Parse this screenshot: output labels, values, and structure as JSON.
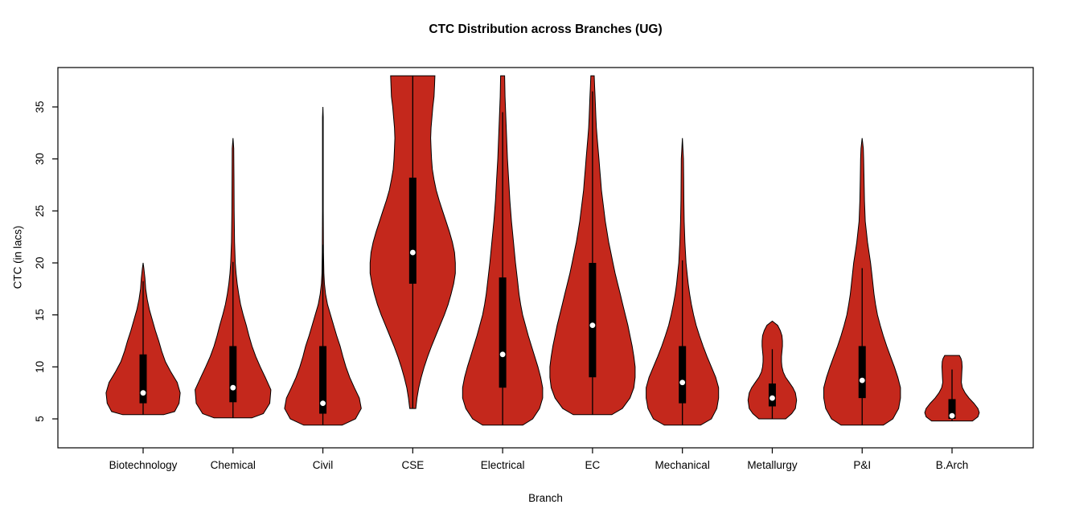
{
  "chart_data": {
    "type": "violin",
    "title": "CTC Distribution across Branches (UG)",
    "xlabel": "Branch",
    "ylabel": "CTC (in lacs)",
    "yticks": [
      5,
      10,
      15,
      20,
      25,
      30,
      35
    ],
    "ylim": [
      2.2,
      38.8
    ],
    "grid": false,
    "categories": [
      "Biotechnology",
      "Chemical",
      "Civil",
      "CSE",
      "Electrical",
      "EC",
      "Mechanical",
      "Metallurgy",
      "P&I",
      "B.Arch"
    ],
    "colors": {
      "violin_fill": "#C4281C",
      "outline": "#000000",
      "box": "#000000",
      "median_dot": "#FFFFFF",
      "background": "#FFFFFF"
    },
    "series": [
      {
        "name": "Biotechnology",
        "min": 5.4,
        "q1": 6.5,
        "median": 7.5,
        "q3": 11.2,
        "max": 20,
        "width": 0.87,
        "shape": [
          [
            5.4,
            0.55
          ],
          [
            5.7,
            0.85
          ],
          [
            6.5,
            0.97
          ],
          [
            7.5,
            1.0
          ],
          [
            8.5,
            0.92
          ],
          [
            9.5,
            0.75
          ],
          [
            10.5,
            0.6
          ],
          [
            11.5,
            0.5
          ],
          [
            12.5,
            0.42
          ],
          [
            13.5,
            0.33
          ],
          [
            14.5,
            0.25
          ],
          [
            15.5,
            0.17
          ],
          [
            16.5,
            0.11
          ],
          [
            17.5,
            0.07
          ],
          [
            18.5,
            0.05
          ],
          [
            19.5,
            0.02
          ],
          [
            20,
            0.0
          ]
        ]
      },
      {
        "name": "Chemical",
        "min": 5.1,
        "q1": 6.6,
        "median": 8,
        "q3": 12,
        "max": 32,
        "width": 0.89,
        "shape": [
          [
            5.1,
            0.5
          ],
          [
            5.5,
            0.8
          ],
          [
            6.5,
            0.97
          ],
          [
            7.8,
            1.0
          ],
          [
            9,
            0.85
          ],
          [
            10,
            0.72
          ],
          [
            11,
            0.6
          ],
          [
            12,
            0.5
          ],
          [
            13,
            0.42
          ],
          [
            14,
            0.35
          ],
          [
            15,
            0.27
          ],
          [
            16,
            0.2
          ],
          [
            17,
            0.15
          ],
          [
            18,
            0.11
          ],
          [
            19,
            0.08
          ],
          [
            20,
            0.06
          ],
          [
            22,
            0.04
          ],
          [
            25,
            0.03
          ],
          [
            28,
            0.025
          ],
          [
            31,
            0.02
          ],
          [
            32,
            0.0
          ]
        ]
      },
      {
        "name": "Civil",
        "min": 4.4,
        "q1": 5.5,
        "median": 6.5,
        "q3": 12,
        "max": 35,
        "width": 0.9,
        "shape": [
          [
            4.4,
            0.5
          ],
          [
            5,
            0.85
          ],
          [
            6,
            1.0
          ],
          [
            7,
            0.95
          ],
          [
            8,
            0.82
          ],
          [
            9,
            0.7
          ],
          [
            10,
            0.6
          ],
          [
            11,
            0.52
          ],
          [
            12,
            0.45
          ],
          [
            13,
            0.36
          ],
          [
            14,
            0.28
          ],
          [
            15,
            0.2
          ],
          [
            16,
            0.12
          ],
          [
            17,
            0.07
          ],
          [
            18,
            0.04
          ],
          [
            19,
            0.025
          ],
          [
            21,
            0.015
          ],
          [
            25,
            0.01
          ],
          [
            30,
            0.01
          ],
          [
            34,
            0.01
          ],
          [
            35,
            0.0
          ]
        ]
      },
      {
        "name": "CSE",
        "min": 6,
        "q1": 18,
        "median": 21,
        "q3": 28.2,
        "max": 38,
        "width": 1.0,
        "shape": [
          [
            6,
            0.07
          ],
          [
            7,
            0.1
          ],
          [
            8,
            0.14
          ],
          [
            9,
            0.2
          ],
          [
            10,
            0.27
          ],
          [
            11,
            0.35
          ],
          [
            12,
            0.44
          ],
          [
            13,
            0.54
          ],
          [
            14,
            0.64
          ],
          [
            15,
            0.74
          ],
          [
            16,
            0.83
          ],
          [
            17,
            0.9
          ],
          [
            18,
            0.96
          ],
          [
            19,
            1.0
          ],
          [
            20,
            1.0
          ],
          [
            21,
            0.98
          ],
          [
            22,
            0.93
          ],
          [
            23,
            0.86
          ],
          [
            24,
            0.78
          ],
          [
            25,
            0.7
          ],
          [
            26,
            0.62
          ],
          [
            27,
            0.55
          ],
          [
            28,
            0.5
          ],
          [
            29,
            0.46
          ],
          [
            30,
            0.44
          ],
          [
            31,
            0.43
          ],
          [
            32,
            0.42
          ],
          [
            33,
            0.43
          ],
          [
            34,
            0.45
          ],
          [
            35,
            0.47
          ],
          [
            36,
            0.5
          ],
          [
            37,
            0.51
          ],
          [
            38,
            0.52
          ]
        ]
      },
      {
        "name": "Electrical",
        "min": 4.4,
        "q1": 8,
        "median": 11.2,
        "q3": 18.6,
        "max": 38,
        "width": 0.94,
        "shape": [
          [
            4.4,
            0.5
          ],
          [
            5,
            0.75
          ],
          [
            6,
            0.92
          ],
          [
            7,
            1.0
          ],
          [
            8,
            1.0
          ],
          [
            9,
            0.95
          ],
          [
            10,
            0.88
          ],
          [
            11,
            0.8
          ],
          [
            12,
            0.72
          ],
          [
            13,
            0.64
          ],
          [
            14,
            0.57
          ],
          [
            15,
            0.5
          ],
          [
            16,
            0.45
          ],
          [
            17,
            0.41
          ],
          [
            18,
            0.38
          ],
          [
            19,
            0.35
          ],
          [
            20,
            0.32
          ],
          [
            22,
            0.27
          ],
          [
            24,
            0.22
          ],
          [
            26,
            0.18
          ],
          [
            28,
            0.15
          ],
          [
            30,
            0.12
          ],
          [
            32,
            0.1
          ],
          [
            34,
            0.08
          ],
          [
            36,
            0.06
          ],
          [
            38,
            0.05
          ]
        ]
      },
      {
        "name": "EC",
        "min": 5.4,
        "q1": 9,
        "median": 14,
        "q3": 20,
        "max": 38,
        "width": 1.0,
        "shape": [
          [
            5.4,
            0.45
          ],
          [
            6,
            0.7
          ],
          [
            7,
            0.88
          ],
          [
            8,
            0.97
          ],
          [
            9,
            1.0
          ],
          [
            10,
            1.0
          ],
          [
            11,
            0.97
          ],
          [
            12,
            0.93
          ],
          [
            13,
            0.88
          ],
          [
            14,
            0.83
          ],
          [
            15,
            0.77
          ],
          [
            16,
            0.71
          ],
          [
            17,
            0.65
          ],
          [
            18,
            0.59
          ],
          [
            19,
            0.53
          ],
          [
            20,
            0.48
          ],
          [
            21,
            0.43
          ],
          [
            22,
            0.38
          ],
          [
            23,
            0.34
          ],
          [
            24,
            0.3
          ],
          [
            25,
            0.27
          ],
          [
            26,
            0.24
          ],
          [
            27,
            0.21
          ],
          [
            28,
            0.19
          ],
          [
            29,
            0.17
          ],
          [
            30,
            0.15
          ],
          [
            31,
            0.13
          ],
          [
            32,
            0.11
          ],
          [
            33,
            0.09
          ],
          [
            34,
            0.08
          ],
          [
            35,
            0.07
          ],
          [
            36,
            0.06
          ],
          [
            37,
            0.05
          ],
          [
            38,
            0.04
          ]
        ]
      },
      {
        "name": "Mechanical",
        "min": 4.4,
        "q1": 6.5,
        "median": 8.5,
        "q3": 12,
        "max": 32,
        "width": 0.85,
        "shape": [
          [
            4.4,
            0.5
          ],
          [
            5,
            0.8
          ],
          [
            6,
            0.95
          ],
          [
            7,
            1.0
          ],
          [
            8,
            1.0
          ],
          [
            9,
            0.92
          ],
          [
            10,
            0.8
          ],
          [
            11,
            0.68
          ],
          [
            12,
            0.57
          ],
          [
            13,
            0.47
          ],
          [
            14,
            0.38
          ],
          [
            15,
            0.31
          ],
          [
            16,
            0.25
          ],
          [
            17,
            0.2
          ],
          [
            18,
            0.16
          ],
          [
            19,
            0.13
          ],
          [
            20,
            0.1
          ],
          [
            22,
            0.07
          ],
          [
            24,
            0.05
          ],
          [
            26,
            0.04
          ],
          [
            28,
            0.035
          ],
          [
            30,
            0.03
          ],
          [
            32,
            0.0
          ]
        ]
      },
      {
        "name": "Metallurgy",
        "min": 5,
        "q1": 6.2,
        "median": 7,
        "q3": 8.4,
        "max": 14.4,
        "width": 0.57,
        "shape": [
          [
            5,
            0.55
          ],
          [
            5.5,
            0.8
          ],
          [
            6,
            0.95
          ],
          [
            6.8,
            1.0
          ],
          [
            7.5,
            0.95
          ],
          [
            8,
            0.85
          ],
          [
            8.5,
            0.7
          ],
          [
            9,
            0.55
          ],
          [
            9.5,
            0.45
          ],
          [
            10,
            0.4
          ],
          [
            10.5,
            0.38
          ],
          [
            11,
            0.38
          ],
          [
            11.5,
            0.4
          ],
          [
            12,
            0.42
          ],
          [
            12.5,
            0.42
          ],
          [
            13,
            0.4
          ],
          [
            13.5,
            0.33
          ],
          [
            14,
            0.22
          ],
          [
            14.4,
            0.0
          ]
        ]
      },
      {
        "name": "P&I",
        "min": 4.4,
        "q1": 7,
        "median": 8.7,
        "q3": 12,
        "max": 32,
        "width": 0.9,
        "shape": [
          [
            4.4,
            0.55
          ],
          [
            5,
            0.8
          ],
          [
            6,
            0.95
          ],
          [
            7,
            1.0
          ],
          [
            8,
            1.0
          ],
          [
            9,
            0.93
          ],
          [
            10,
            0.84
          ],
          [
            11,
            0.74
          ],
          [
            12,
            0.64
          ],
          [
            13,
            0.55
          ],
          [
            14,
            0.47
          ],
          [
            15,
            0.4
          ],
          [
            16,
            0.35
          ],
          [
            17,
            0.31
          ],
          [
            18,
            0.28
          ],
          [
            19,
            0.25
          ],
          [
            20,
            0.22
          ],
          [
            21,
            0.18
          ],
          [
            22,
            0.14
          ],
          [
            23,
            0.11
          ],
          [
            24,
            0.08
          ],
          [
            26,
            0.06
          ],
          [
            28,
            0.05
          ],
          [
            30,
            0.04
          ],
          [
            31,
            0.03
          ],
          [
            32,
            0.0
          ]
        ]
      },
      {
        "name": "B.Arch",
        "min": 4.8,
        "q1": 5,
        "median": 5.3,
        "q3": 6.9,
        "max": 11.1,
        "width": 0.64,
        "shape": [
          [
            4.8,
            0.75
          ],
          [
            5.2,
            0.95
          ],
          [
            5.6,
            1.0
          ],
          [
            6,
            0.95
          ],
          [
            6.5,
            0.8
          ],
          [
            7,
            0.62
          ],
          [
            7.5,
            0.48
          ],
          [
            8,
            0.38
          ],
          [
            8.5,
            0.34
          ],
          [
            9,
            0.35
          ],
          [
            9.5,
            0.36
          ],
          [
            10,
            0.37
          ],
          [
            10.5,
            0.36
          ],
          [
            10.8,
            0.33
          ],
          [
            11.1,
            0.27
          ]
        ]
      }
    ]
  }
}
